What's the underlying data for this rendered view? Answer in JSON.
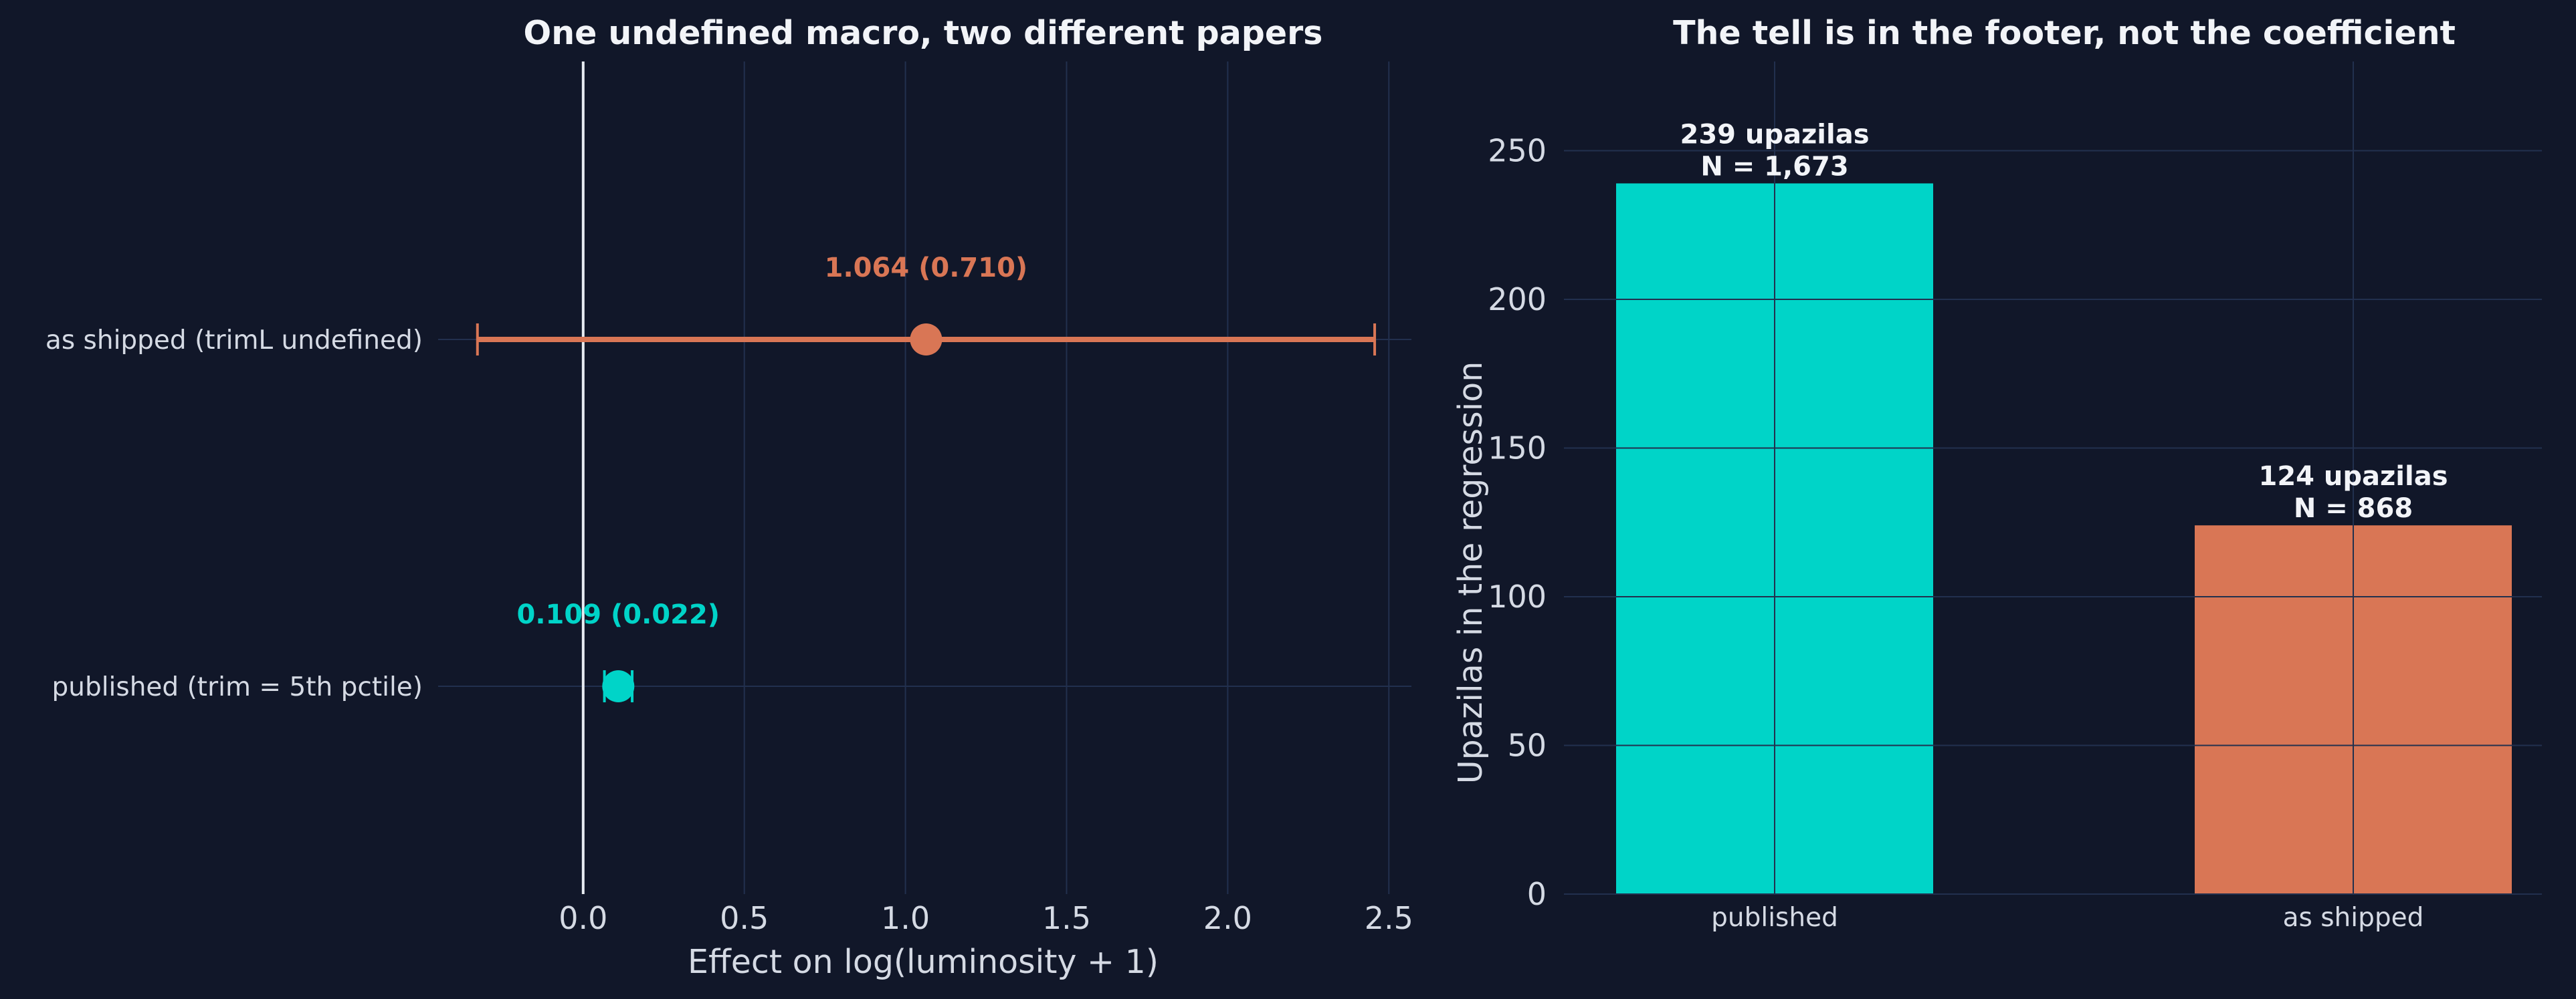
{
  "colors": {
    "background": "#111729",
    "grid": "#22304e",
    "published": "#00d4c8",
    "as_shipped": "#d97655",
    "zero_line": "#e8ecf2",
    "text": "#d5dae4",
    "title": "#f2f4f8"
  },
  "chart_data": [
    {
      "type": "scatter",
      "title": "One undefined macro, two different papers",
      "xlabel": "Effect on log(luminosity + 1)",
      "ylabel": "",
      "xlim": [
        -0.45,
        2.57
      ],
      "xticks": [
        "0.0",
        "0.5",
        "1.0",
        "1.5",
        "2.0",
        "2.5"
      ],
      "xtick_values": [
        0,
        0.5,
        1.0,
        1.5,
        2.0,
        2.5
      ],
      "grid": true,
      "reference_line_x": 0,
      "rows": [
        {
          "label": "as shipped (trimL undefined)",
          "estimate": 1.064,
          "se": 0.71,
          "ci": [
            -0.328,
            2.456
          ],
          "annotation": "1.064 (0.710)",
          "color_key": "as_shipped"
        },
        {
          "label": "published (trim = 5th pctile)",
          "estimate": 0.109,
          "se": 0.022,
          "ci": [
            0.066,
            0.152
          ],
          "annotation": "0.109 (0.022)",
          "color_key": "published"
        }
      ]
    },
    {
      "type": "bar",
      "title": "The tell is in the footer, not the coefficient",
      "xlabel": "",
      "ylabel": "Upazilas in the regression",
      "ylim": [
        0,
        280
      ],
      "yticks": [
        "0",
        "50",
        "100",
        "150",
        "200",
        "250"
      ],
      "ytick_values": [
        0,
        50,
        100,
        150,
        200,
        250
      ],
      "grid": true,
      "categories": [
        "published",
        "as shipped"
      ],
      "values": [
        239,
        124
      ],
      "bar_labels": [
        [
          "239 upazilas",
          "N = 1,673"
        ],
        [
          "124 upazilas",
          "N = 868"
        ]
      ],
      "color_keys": [
        "published",
        "as_shipped"
      ]
    }
  ]
}
